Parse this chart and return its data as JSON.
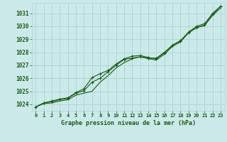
{
  "title": "Graphe pression niveau de la mer (hPa)",
  "background_color": "#cce9e9",
  "grid_color": "#aad4d4",
  "line_color": "#1a5c1a",
  "marker_color": "#1a5c1a",
  "x_ticks": [
    0,
    1,
    2,
    3,
    4,
    5,
    6,
    7,
    8,
    9,
    10,
    11,
    12,
    13,
    14,
    15,
    16,
    17,
    18,
    19,
    20,
    21,
    22,
    23
  ],
  "ylim": [
    1023.5,
    1031.8
  ],
  "yticks": [
    1024,
    1025,
    1026,
    1027,
    1028,
    1029,
    1030,
    1031
  ],
  "series1": [
    1023.8,
    1024.1,
    1024.2,
    1024.35,
    1024.45,
    1024.85,
    1025.05,
    1025.7,
    1026.0,
    1026.5,
    1027.0,
    1027.45,
    1027.55,
    1027.65,
    1027.55,
    1027.55,
    1028.0,
    1028.55,
    1028.85,
    1029.5,
    1029.9,
    1030.1,
    1030.9,
    1031.55
  ],
  "series2": [
    1023.8,
    1024.1,
    1024.25,
    1024.4,
    1024.5,
    1024.9,
    1025.2,
    1026.05,
    1026.35,
    1026.6,
    1027.1,
    1027.5,
    1027.7,
    1027.75,
    1027.6,
    1027.5,
    1027.95,
    1028.55,
    1028.9,
    1029.55,
    1030.0,
    1030.2,
    1031.0,
    1031.55
  ],
  "series3": [
    1023.8,
    1024.05,
    1024.1,
    1024.25,
    1024.35,
    1024.7,
    1024.85,
    1025.0,
    1025.7,
    1026.2,
    1026.8,
    1027.2,
    1027.5,
    1027.65,
    1027.5,
    1027.4,
    1027.85,
    1028.45,
    1028.8,
    1029.5,
    1029.9,
    1030.05,
    1030.85,
    1031.4
  ]
}
